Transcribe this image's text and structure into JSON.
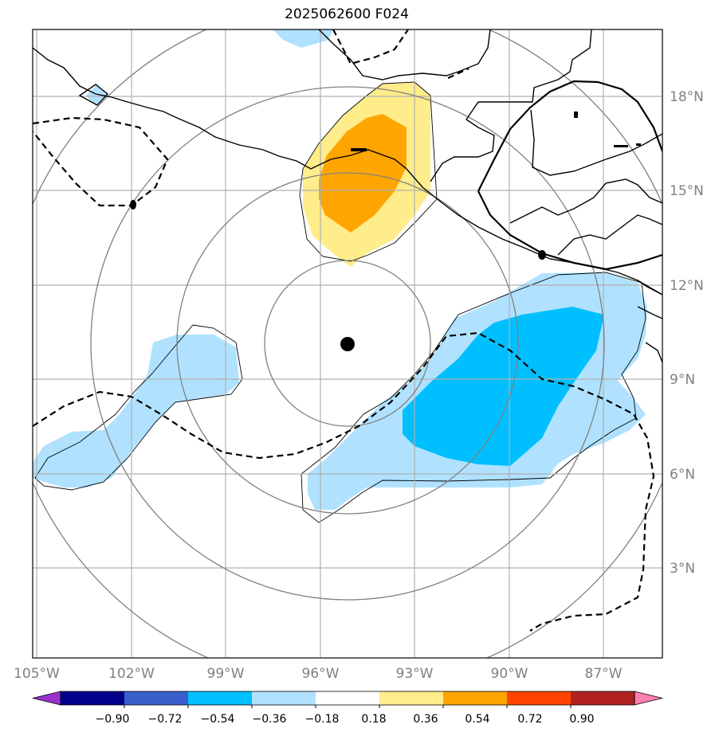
{
  "title": "2025062600 F024",
  "map": {
    "lon_range": [
      -105.2,
      -85.5
    ],
    "lat_range": [
      0.3,
      20.2
    ],
    "lon_ticks": [
      {
        "value": -105,
        "label": "105°W"
      },
      {
        "value": -102,
        "label": "102°W"
      },
      {
        "value": -99,
        "label": "99°W"
      },
      {
        "value": -96,
        "label": "96°W"
      },
      {
        "value": -93,
        "label": "93°W"
      },
      {
        "value": -90,
        "label": "90°W"
      },
      {
        "value": -87,
        "label": "87°W"
      }
    ],
    "lat_ticks": [
      {
        "value": 3,
        "label": "3°N"
      },
      {
        "value": 6,
        "label": "6°N"
      },
      {
        "value": 9,
        "label": "9°N"
      },
      {
        "value": 12,
        "label": "12°N"
      },
      {
        "value": 15,
        "label": "15°N"
      },
      {
        "value": 18,
        "label": "18°N"
      }
    ],
    "center_marker": {
      "lon": -94.9,
      "lat": 10.1
    },
    "gridlines": true
  },
  "colorbar": {
    "colors": [
      "#9932cc",
      "#00008b",
      "#3a5fcd",
      "#00bfff",
      "#b0e2ff",
      "#ffffff",
      "#ffec8b",
      "#ffa500",
      "#ff4500",
      "#b22222",
      "#ff7fb0"
    ],
    "labels": [
      "−0.90",
      "−0.72",
      "−0.54",
      "−0.36",
      "−0.18",
      "0.18",
      "0.36",
      "0.54",
      "0.72",
      "0.90"
    ],
    "extend": "both"
  },
  "colors": {
    "light_blue": "#b0e2ff",
    "deep_sky_blue": "#00bfff",
    "light_yellow": "#ffec8b",
    "orange": "#ffa500",
    "grid": "#b0b0b0",
    "range_rings": "#808080"
  }
}
